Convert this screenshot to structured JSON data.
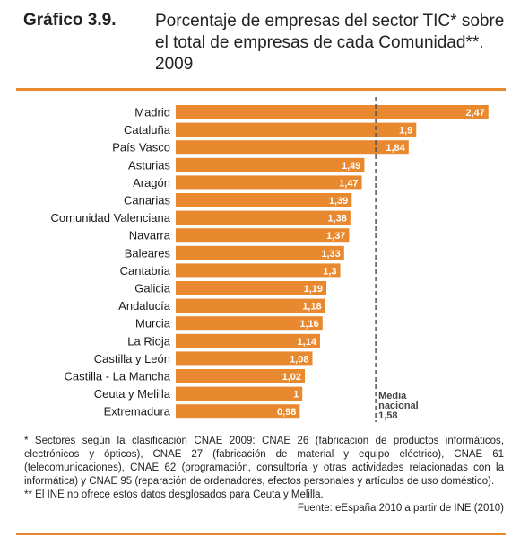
{
  "header": {
    "figure_label": "Gráfico 3.9.",
    "title": "Porcentaje de empresas del sector TIC* sobre el total de empresas de cada Comunidad**. 2009"
  },
  "notes": {
    "footnote_1": "* Sectores según la clasificación CNAE 2009: CNAE 26 (fabricación de productos informáticos, electrónicos y ópticos), CNAE 27 (fabricación de material y equipo eléctrico), CNAE 61 (telecomunicaciones), CNAE 62 (programación, consultoría y otras actividades relacionadas con la informática) y CNAE 95 (reparación de ordenadores, efectos personales y artículos de uso doméstico).",
    "footnote_2": "** El INE no ofrece estos datos desglosados para Ceuta y Melilla.",
    "source": "Fuente: eEspaña 2010 a partir de INE (2010)"
  },
  "chart_data": {
    "type": "bar",
    "orientation": "horizontal",
    "categories": [
      "Madrid",
      "Cataluña",
      "País Vasco",
      "Asturias",
      "Aragón",
      "Canarias",
      "Comunidad Valenciana",
      "Navarra",
      "Baleares",
      "Cantabria",
      "Galicia",
      "Andalucía",
      "Murcia",
      "La Rioja",
      "Castilla y León",
      "Castilla - La Mancha",
      "Ceuta y Melilla",
      "Extremadura"
    ],
    "values": [
      2.47,
      1.9,
      1.84,
      1.49,
      1.47,
      1.39,
      1.38,
      1.37,
      1.33,
      1.3,
      1.19,
      1.18,
      1.16,
      1.14,
      1.08,
      1.02,
      1,
      0.98
    ],
    "value_labels": [
      "2,47",
      "1,9",
      "1,84",
      "1,49",
      "1,47",
      "1,39",
      "1,38",
      "1,37",
      "1,33",
      "1,3",
      "1,19",
      "1,18",
      "1,16",
      "1,14",
      "1,08",
      "1,02",
      "1",
      "0,98"
    ],
    "xlim": [
      0,
      2.5
    ],
    "reference_line": {
      "value": 1.58,
      "label_lines": [
        "Media",
        "nacional",
        "1,58"
      ]
    },
    "bar_color": "#e9892f",
    "label_color": "#ffffff",
    "reference_color": "#555555"
  }
}
